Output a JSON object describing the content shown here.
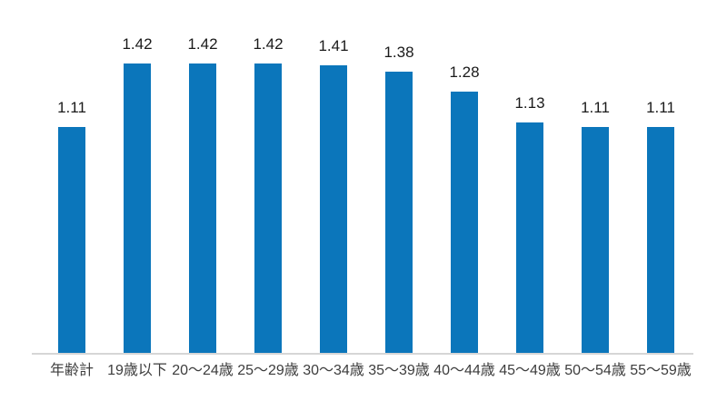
{
  "chart_data": {
    "type": "bar",
    "title": "",
    "xlabel": "",
    "ylabel": "",
    "categories": [
      "年齢計",
      "19歳以下",
      "20～24歳",
      "25～29歳",
      "30～34歳",
      "35～39歳",
      "40～44歳",
      "45～49歳",
      "50～54歳",
      "55～59歳"
    ],
    "values": [
      1.11,
      1.42,
      1.42,
      1.42,
      1.41,
      1.38,
      1.28,
      1.13,
      1.11,
      1.11
    ],
    "value_labels": [
      "1.11",
      "1.42",
      "1.42",
      "1.42",
      "1.41",
      "1.38",
      "1.28",
      "1.13",
      "1.11",
      "1.11"
    ],
    "ylim": [
      0,
      1.73
    ],
    "grid": false,
    "legend": false,
    "data_labels_position": "above bars",
    "bar_color": "#0b76bb",
    "axis_line_color": "#d6d6d6",
    "value_label_color": "#1a1a1a",
    "category_label_color": "#3d3d3d",
    "background_color": "#ffffff"
  }
}
